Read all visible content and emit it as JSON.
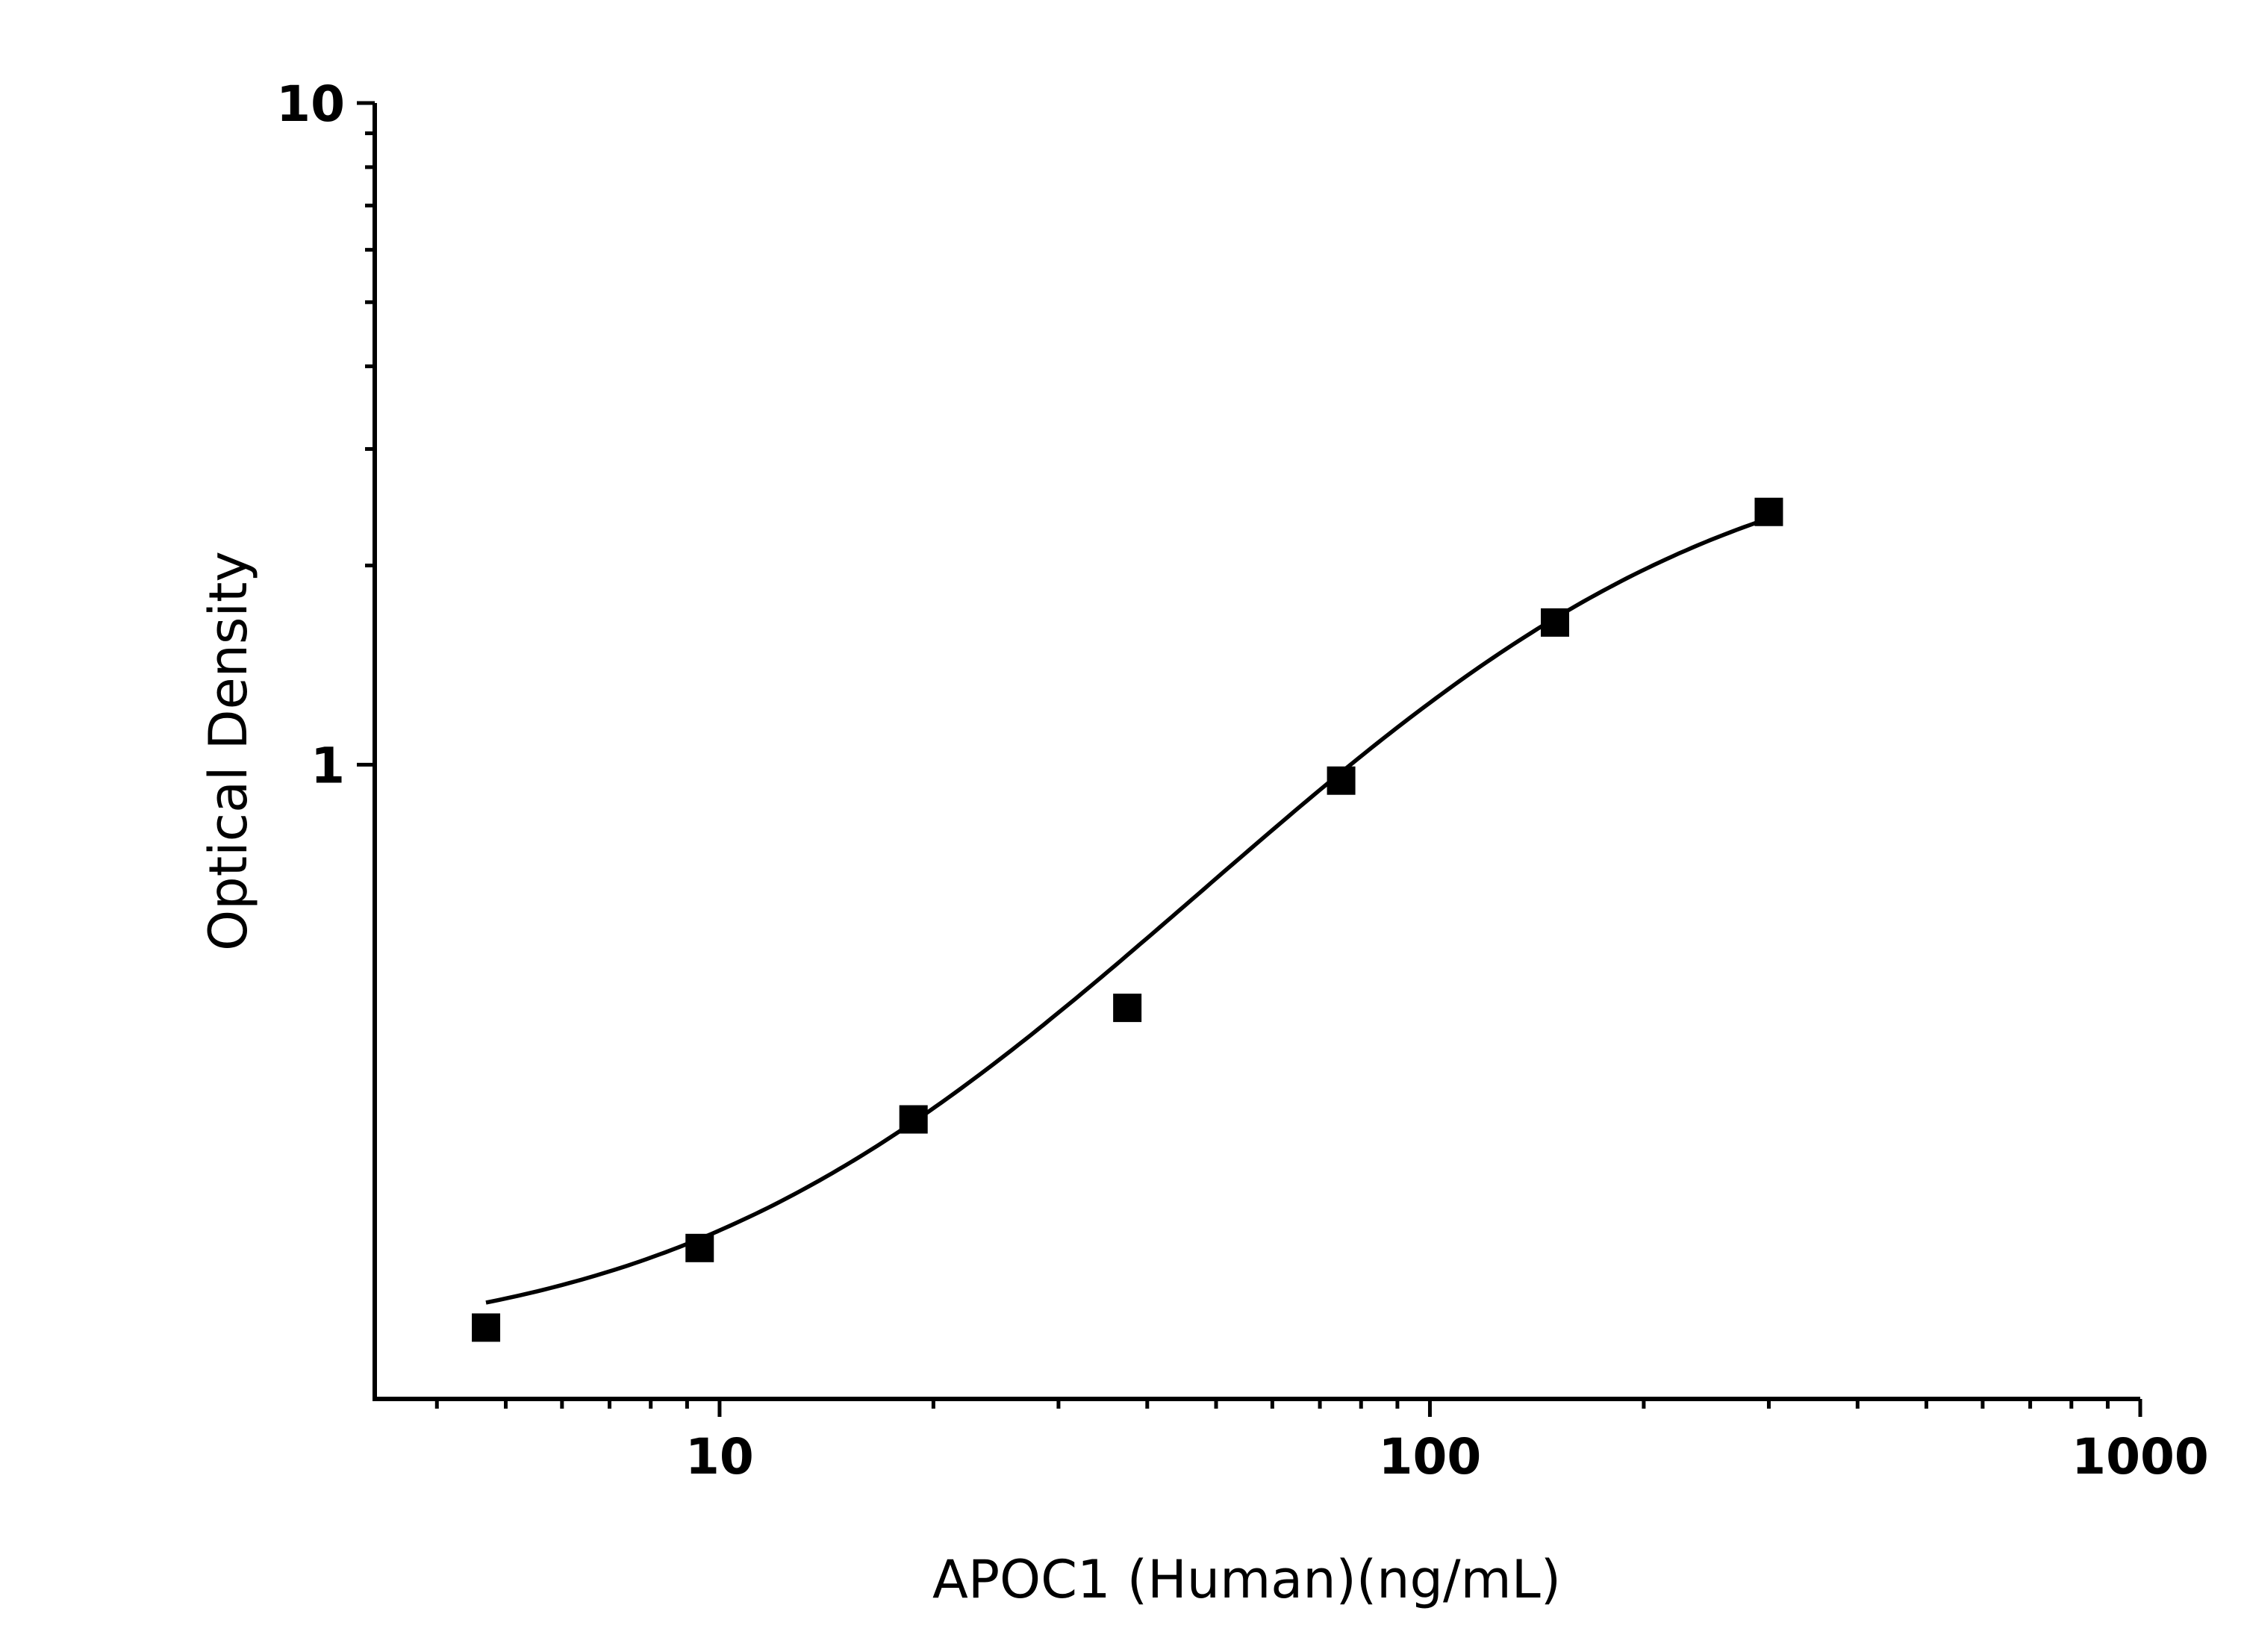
{
  "chart_data": {
    "type": "scatter",
    "title": "",
    "xlabel": "APOC1 (Human)(ng/mL)",
    "ylabel": "Optical Density",
    "x_scale": "log",
    "y_scale": "log",
    "xlim": [
      3.27,
      1000
    ],
    "ylim": [
      0.11,
      10
    ],
    "x_ticks": [
      {
        "value": 10,
        "label": "10"
      },
      {
        "value": 100,
        "label": "100"
      },
      {
        "value": 1000,
        "label": "1000"
      }
    ],
    "y_ticks": [
      {
        "value": 1,
        "label": "1"
      },
      {
        "value": 10,
        "label": "10"
      }
    ],
    "grid": false,
    "legend": "none",
    "marker": "square",
    "color": "#000000",
    "series": [
      {
        "x": [
          4.69,
          9.375,
          18.75,
          37.5,
          75,
          150,
          300
        ],
        "y": [
          0.141,
          0.186,
          0.291,
          0.429,
          0.946,
          1.64,
          2.41
        ]
      }
    ],
    "fit_curve": {
      "type": "four-parameter logistic",
      "x_range": [
        4.69,
        300
      ]
    }
  }
}
